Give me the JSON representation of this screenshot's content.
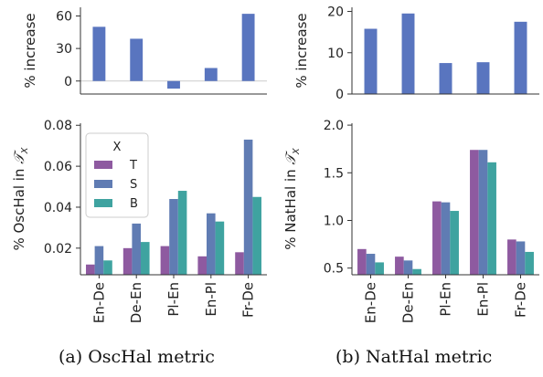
{
  "captions": {
    "a": "(a) OscHal metric",
    "b": "(b) NatHal metric"
  },
  "colors": {
    "increase": "#5975bf",
    "T": "#8e5aa0",
    "S": "#607cb3",
    "B": "#3fa3a0"
  },
  "chart_data": [
    {
      "id": "osc-increase",
      "type": "bar",
      "categories": [
        "En-De",
        "De-En",
        "Pl-En",
        "En-Pl",
        "Fr-De"
      ],
      "values": [
        50,
        39,
        -7,
        12,
        62
      ],
      "ylabel": "% increase",
      "ylim": [
        -12,
        68
      ],
      "yticks": [
        0,
        30,
        60
      ],
      "grid": false
    },
    {
      "id": "nat-increase",
      "type": "bar",
      "categories": [
        "En-De",
        "De-En",
        "Pl-En",
        "En-Pl",
        "Fr-De"
      ],
      "values": [
        15.8,
        19.5,
        7.5,
        7.7,
        17.5
      ],
      "ylabel": "% increase",
      "ylim": [
        0,
        21
      ],
      "yticks": [
        0,
        10,
        20
      ],
      "grid": false
    },
    {
      "id": "osc-metric",
      "type": "bar",
      "categories": [
        "En-De",
        "De-En",
        "Pl-En",
        "En-Pl",
        "Fr-De"
      ],
      "series": [
        {
          "name": "T",
          "values": [
            0.012,
            0.02,
            0.021,
            0.016,
            0.018
          ]
        },
        {
          "name": "S",
          "values": [
            0.021,
            0.032,
            0.044,
            0.037,
            0.073
          ]
        },
        {
          "name": "B",
          "values": [
            0.014,
            0.023,
            0.048,
            0.033,
            0.045
          ]
        }
      ],
      "ylabel": "% OscHal in",
      "ylabel_symbol": "𝒯",
      "ylabel_sub": "X",
      "ylim": [
        0.007,
        0.081
      ],
      "yticks": [
        0.02,
        0.04,
        0.06,
        0.08
      ],
      "legend": {
        "title": "X",
        "placement": "top-left"
      },
      "grid": false
    },
    {
      "id": "nat-metric",
      "type": "bar",
      "categories": [
        "En-De",
        "De-En",
        "Pl-En",
        "En-Pl",
        "Fr-De"
      ],
      "series": [
        {
          "name": "T",
          "values": [
            0.7,
            0.62,
            1.2,
            1.74,
            0.8
          ]
        },
        {
          "name": "S",
          "values": [
            0.65,
            0.58,
            1.19,
            1.74,
            0.78
          ]
        },
        {
          "name": "B",
          "values": [
            0.56,
            0.49,
            1.1,
            1.61,
            0.67
          ]
        }
      ],
      "ylabel": "% NatHal in",
      "ylabel_symbol": "𝒯",
      "ylabel_sub": "X",
      "ylim": [
        0.43,
        2.02
      ],
      "yticks": [
        0.5,
        1.0,
        1.5,
        2.0
      ],
      "grid": false
    }
  ]
}
